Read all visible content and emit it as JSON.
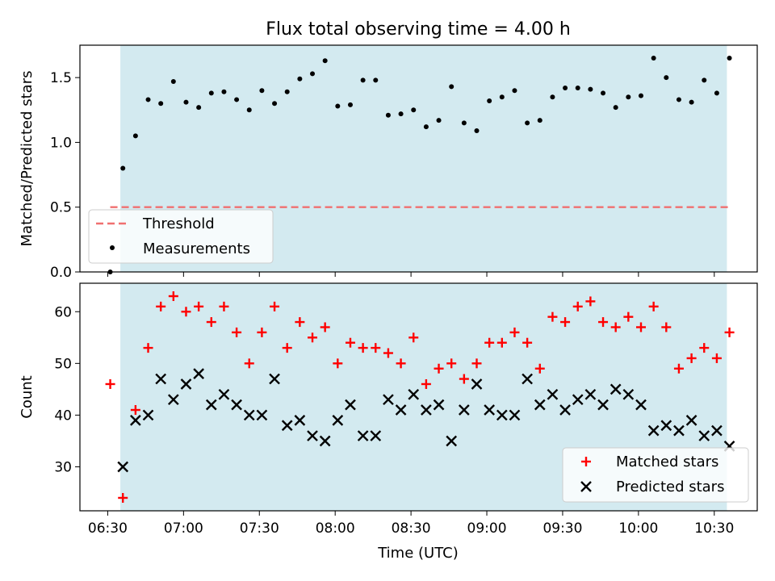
{
  "title": "Flux total observing time = 4.00 h",
  "xlabel": "Time (UTC)",
  "x_ticks": [
    "06:30",
    "07:00",
    "07:30",
    "08:00",
    "08:30",
    "09:00",
    "09:30",
    "10:00",
    "10:30"
  ],
  "colors": {
    "observing_span": "#d3eaf0",
    "threshold": "#f07070",
    "measurements": "#000000",
    "matched": "#ff0000",
    "predicted": "#000000"
  },
  "chart_data": [
    {
      "type": "scatter",
      "ylabel": "Matched/Predicted stars",
      "ylim": [
        0,
        1.75
      ],
      "y_ticks": [
        "0.0",
        "0.5",
        "1.0",
        "1.5"
      ],
      "x_range": [
        "06:19",
        "10:47"
      ],
      "observing_span": [
        "06:35",
        "10:35"
      ],
      "threshold": 0.5,
      "legend": [
        "Threshold",
        "Measurements"
      ],
      "legend_position": "lower-left",
      "x": [
        "06:31",
        "06:36",
        "06:41",
        "06:46",
        "06:51",
        "06:56",
        "07:01",
        "07:06",
        "07:11",
        "07:16",
        "07:21",
        "07:26",
        "07:31",
        "07:36",
        "07:41",
        "07:46",
        "07:51",
        "07:56",
        "08:01",
        "08:06",
        "08:11",
        "08:16",
        "08:21",
        "08:26",
        "08:31",
        "08:36",
        "08:41",
        "08:46",
        "08:51",
        "08:56",
        "09:01",
        "09:06",
        "09:11",
        "09:16",
        "09:21",
        "09:26",
        "09:31",
        "09:36",
        "09:41",
        "09:46",
        "09:51",
        "09:56",
        "10:01",
        "10:06",
        "10:11",
        "10:16",
        "10:21",
        "10:26",
        "10:31",
        "10:36"
      ],
      "measurements": [
        0.0,
        0.8,
        1.05,
        1.33,
        1.3,
        1.47,
        1.31,
        1.27,
        1.38,
        1.39,
        1.33,
        1.25,
        1.4,
        1.3,
        1.39,
        1.49,
        1.53,
        1.63,
        1.28,
        1.29,
        1.48,
        1.48,
        1.21,
        1.22,
        1.25,
        1.12,
        1.17,
        1.43,
        1.15,
        1.09,
        1.32,
        1.35,
        1.4,
        1.15,
        1.17,
        1.35,
        1.42,
        1.42,
        1.41,
        1.38,
        1.27,
        1.35,
        1.36,
        1.65,
        1.5,
        1.33,
        1.31,
        1.48,
        1.38,
        1.65
      ]
    },
    {
      "type": "scatter",
      "ylabel": "Count",
      "ylim": [
        21.5,
        65.5
      ],
      "y_ticks": [
        "30",
        "40",
        "50",
        "60"
      ],
      "x_range": [
        "06:19",
        "10:47"
      ],
      "observing_span": [
        "06:35",
        "10:35"
      ],
      "legend_position": "lower-right",
      "x": [
        "06:31",
        "06:36",
        "06:41",
        "06:46",
        "06:51",
        "06:56",
        "07:01",
        "07:06",
        "07:11",
        "07:16",
        "07:21",
        "07:26",
        "07:31",
        "07:36",
        "07:41",
        "07:46",
        "07:51",
        "07:56",
        "08:01",
        "08:06",
        "08:11",
        "08:16",
        "08:21",
        "08:26",
        "08:31",
        "08:36",
        "08:41",
        "08:46",
        "08:51",
        "08:56",
        "09:01",
        "09:06",
        "09:11",
        "09:16",
        "09:21",
        "09:26",
        "09:31",
        "09:36",
        "09:41",
        "09:46",
        "09:51",
        "09:56",
        "10:01",
        "10:06",
        "10:11",
        "10:16",
        "10:21",
        "10:26",
        "10:31",
        "10:36"
      ],
      "series": [
        {
          "name": "Matched stars",
          "marker": "+",
          "values": [
            46,
            24,
            41,
            53,
            61,
            63,
            60,
            61,
            58,
            61,
            56,
            50,
            56,
            61,
            53,
            58,
            55,
            57,
            50,
            54,
            53,
            53,
            52,
            50,
            55,
            46,
            49,
            50,
            47,
            50,
            54,
            54,
            56,
            54,
            49,
            59,
            58,
            61,
            62,
            58,
            57,
            59,
            57,
            61,
            57,
            49,
            51,
            53,
            51,
            56
          ]
        },
        {
          "name": "Predicted stars",
          "marker": "x",
          "values": [
            null,
            30,
            39,
            40,
            47,
            43,
            46,
            48,
            42,
            44,
            42,
            40,
            40,
            47,
            38,
            39,
            36,
            35,
            39,
            42,
            36,
            36,
            43,
            41,
            44,
            41,
            42,
            35,
            41,
            46,
            41,
            40,
            40,
            47,
            42,
            44,
            41,
            43,
            44,
            42,
            45,
            44,
            42,
            37,
            38,
            37,
            39,
            36,
            37,
            34
          ]
        }
      ]
    }
  ]
}
